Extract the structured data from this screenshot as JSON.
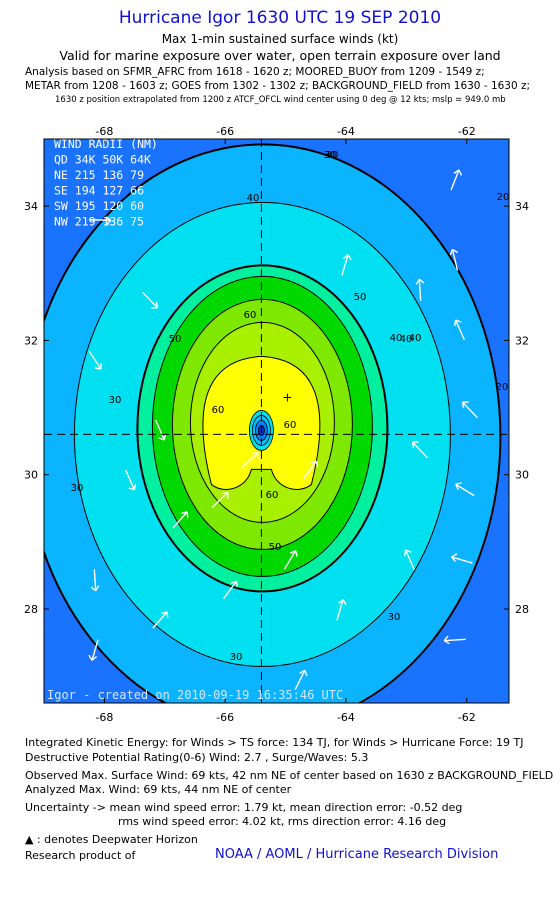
{
  "header": {
    "title": "Hurricane Igor 1630 UTC 19 SEP 2010",
    "subtitle1": "Max 1-min sustained surface winds (kt)",
    "subtitle2": "Valid for marine exposure over water, open terrain exposure over land",
    "analysis1": "Analysis based on SFMR_AFRC from 1618 - 1620 z; MOORED_BUOY from 1209 - 1549 z;",
    "analysis2": "METAR from 1208 - 1603 z; GOES from 1302 - 1302 z; BACKGROUND_FIELD from 1630 - 1630 z;",
    "analysis3": "1630 z position extrapolated from 1200 z ATCF_OFCL wind center using 0 deg @ 12 kts; mslp = 949.0 mb"
  },
  "chart_data": {
    "type": "contour",
    "xticks": [
      -68,
      -66,
      -64,
      -62
    ],
    "yticks": [
      28,
      30,
      32,
      34
    ],
    "xlim": [
      -69.0,
      -61.3
    ],
    "ylim": [
      26.6,
      35.0
    ],
    "center": {
      "lon": -65.4,
      "lat": 30.6
    },
    "contour_labels": [
      "30",
      "40",
      "50",
      "60",
      "50",
      "40",
      "30",
      "60",
      "50",
      "30",
      "40",
      "30",
      "20",
      "20",
      "60",
      "60",
      "40",
      "30",
      "30"
    ],
    "wind_radii": {
      "title": "WIND RADII (NM)",
      "header": "QD 34K 50K 64K",
      "rows": [
        "NE 215 136  79",
        "SE 194 127  66",
        "SW 195 120  60",
        "NW 219 136  75"
      ]
    },
    "credit": "Igor - created on 2010-09-19 16:35:46 UTC",
    "colors": [
      "#1a73ff",
      "#0ab4ff",
      "#00e0f0",
      "#00f0a0",
      "#00d800",
      "#a8f000",
      "#ffff00"
    ]
  },
  "footer": {
    "ike": "Integrated Kinetic Energy:  for Winds > TS force: 134 TJ,  for Winds > Hurricane Force: 19 TJ",
    "dpr": "Destructive Potential Rating(0-6)   Wind: 2.7 , Surge/Waves: 5.3",
    "obs": "Observed Max. Surface Wind: 69 kts, 42 nm NE of center based on 1630 z BACKGROUND_FIELD",
    "ana": "Analyzed Max. Wind: 69 kts, 44 nm NE of center",
    "unc1": "Uncertainty -> mean wind speed error: 1.79 kt,   mean direction error:  -0.52 deg",
    "unc2": "rms wind speed error: 4.02 kt,   rms direction error: 4.16 deg",
    "dwh": ": denotes Deepwater Horizon",
    "research": "Research product of",
    "org": "NOAA / AOML / Hurricane Research Division"
  }
}
